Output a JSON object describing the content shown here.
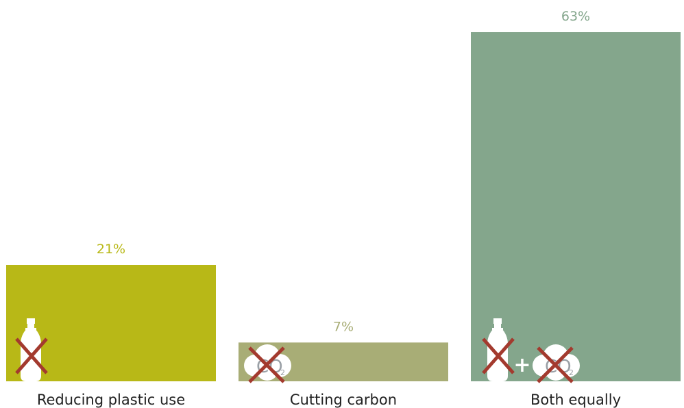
{
  "chart_data": {
    "type": "bar",
    "title": "",
    "xlabel": "",
    "ylabel": "",
    "categories": [
      "Reducing plastic use",
      "Cutting carbon",
      "Both equally"
    ],
    "values": [
      21,
      7,
      63
    ],
    "value_labels": [
      "21%",
      "7%",
      "63%"
    ],
    "unit": "%",
    "ylim": [
      0,
      63
    ],
    "grid": false,
    "legend": "none",
    "colors": [
      "#b8b817",
      "#a8ad76",
      "#84a68c"
    ],
    "icons": [
      [
        "crossed-bottle-icon"
      ],
      [
        "crossed-co2-cloud-icon"
      ],
      [
        "crossed-bottle-icon",
        "plus-icon",
        "crossed-co2-cloud-icon"
      ]
    ],
    "icon_text": {
      "co2_main": "CO",
      "co2_sub": "2",
      "plus": "+"
    },
    "cross_color": "#a33a2e"
  }
}
